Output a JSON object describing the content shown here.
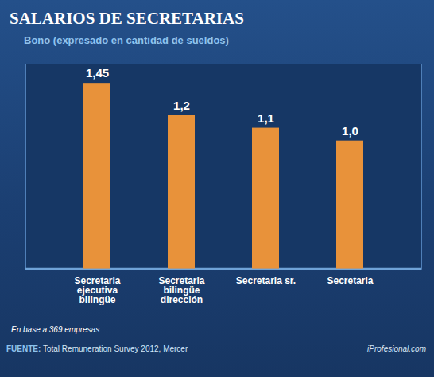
{
  "chart_data": {
    "type": "bar",
    "title": "SALARIOS DE SECRETARIAS",
    "subtitle": "Bono (expresado en cantidad de sueldos)",
    "categories": [
      "Secretaria ejecutiva bilingüe",
      "Secretaria bilingüe dirección",
      "Secretaria sr.",
      "Secretaria"
    ],
    "values": [
      1.45,
      1.2,
      1.1,
      1.0
    ],
    "value_labels": [
      "1,45",
      "1,2",
      "1,1",
      "1,0"
    ],
    "color": "#e8923a",
    "ylim": [
      0,
      1.6
    ],
    "grid": false,
    "data_labels": true,
    "tick_labels": "x",
    "note": "En base a 369 empresas",
    "source_label": "FUENTE:",
    "source": "Total Remuneration Survey 2012, Mercer",
    "credit": "iProfesional.com"
  }
}
